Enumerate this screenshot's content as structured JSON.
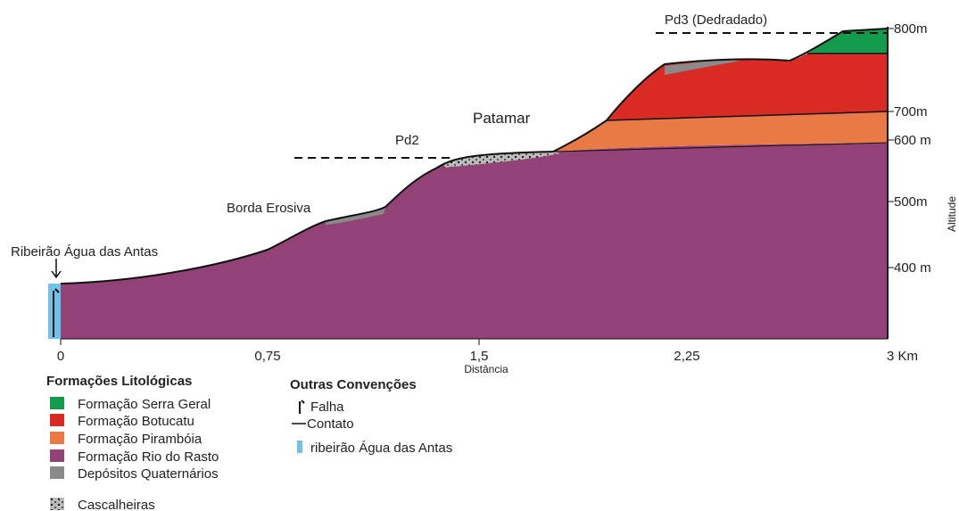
{
  "annotations": {
    "pd3": "Pd3 (Dedradado)",
    "patamar": "Patamar",
    "pd2": "Pd2",
    "borda": "Borda Erosiva",
    "ribeirao": "Ribeirão Água das Antas"
  },
  "x_axis": {
    "label": "Distância",
    "ticks": [
      "0",
      "0,75",
      "1,5",
      "2,25",
      "3 Km"
    ]
  },
  "altitude_axis": {
    "label": "Altitude",
    "ticks": [
      "800m",
      "700m",
      "600 m",
      "500m",
      "400 m"
    ]
  },
  "legend_formations": {
    "title": "Formações Litológicas",
    "items": [
      "Formação Serra Geral",
      "Formação Botucatu",
      "Formação Pirambóia",
      "Formação Rio do Rasto",
      "Depósitos Quaternários",
      "Cascalheiras"
    ]
  },
  "legend_conventions": {
    "title": "Outras Convenções",
    "items": [
      "Falha",
      "Contato",
      "ribeirão Água das Antas"
    ]
  }
}
